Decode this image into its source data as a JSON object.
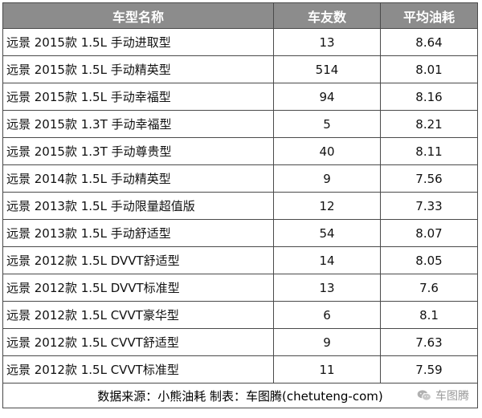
{
  "headers": {
    "model": "车型名称",
    "count": "车友数",
    "fuel": "平均油耗"
  },
  "rows": [
    {
      "model": "远景 2015款 1.5L 手动进取型",
      "count": "13",
      "fuel": "8.64"
    },
    {
      "model": "远景 2015款 1.5L 手动精英型",
      "count": "514",
      "fuel": "8.01"
    },
    {
      "model": "远景 2015款 1.5L 手动幸福型",
      "count": "94",
      "fuel": "8.16"
    },
    {
      "model": "远景 2015款 1.3T 手动幸福型",
      "count": "5",
      "fuel": "8.21"
    },
    {
      "model": "远景 2015款 1.3T 手动尊贵型",
      "count": "40",
      "fuel": "8.11"
    },
    {
      "model": "远景 2014款 1.5L 手动精英型",
      "count": "9",
      "fuel": "7.56"
    },
    {
      "model": "远景 2013款 1.5L 手动限量超值版",
      "count": "12",
      "fuel": "7.33"
    },
    {
      "model": "远景 2013款 1.5L 手动舒适型",
      "count": "54",
      "fuel": "8.07"
    },
    {
      "model": "远景 2012款 1.5L DVVT舒适型",
      "count": "14",
      "fuel": "8.05"
    },
    {
      "model": "远景 2012款 1.5L DVVT标准型",
      "count": "13",
      "fuel": "7.6"
    },
    {
      "model": "远景 2012款 1.5L CVVT豪华型",
      "count": "6",
      "fuel": "8.1"
    },
    {
      "model": "远景 2012款 1.5L CVVT舒适型",
      "count": "9",
      "fuel": "7.63"
    },
    {
      "model": "远景 2012款 1.5L CVVT标准型",
      "count": "11",
      "fuel": "7.59"
    }
  ],
  "footer": {
    "source": "数据来源：小熊油耗  制表：车图腾(chetuteng-com)",
    "watermark_text": "车图腾",
    "watermark_icon": "wechat-icon"
  }
}
